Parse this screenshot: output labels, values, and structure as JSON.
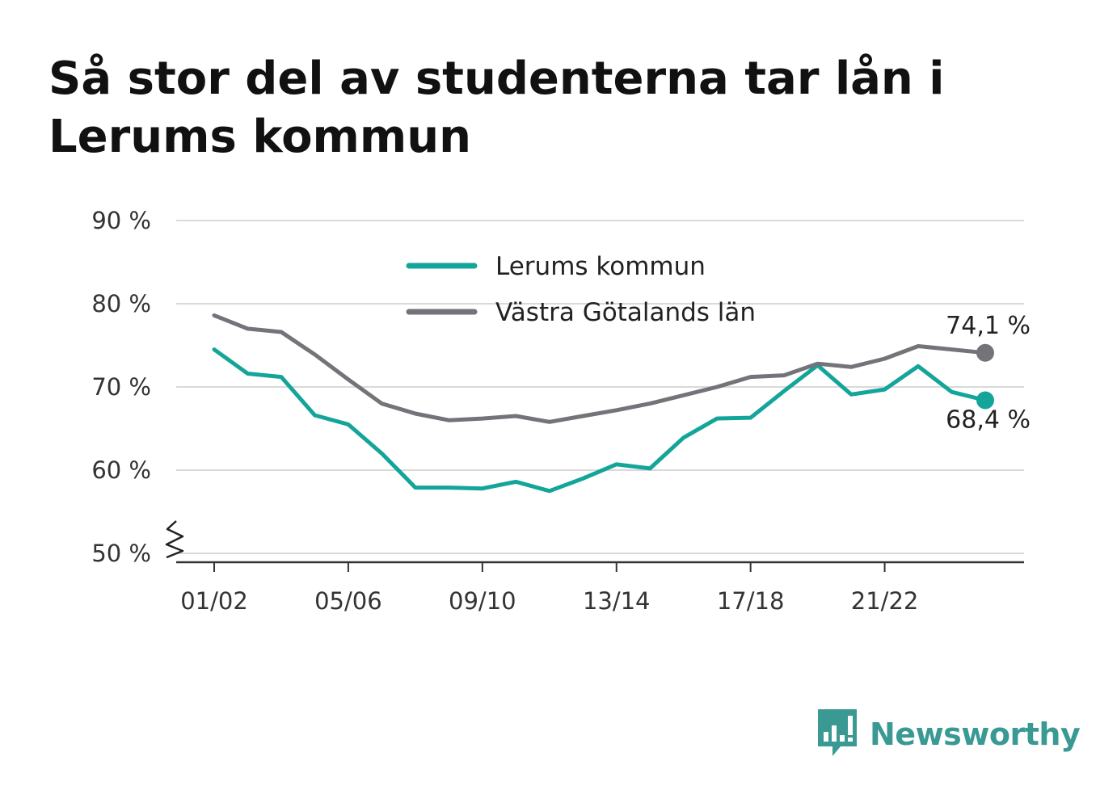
{
  "title": "Så stor del av studenterna tar lån i Lerums kommun",
  "brand": {
    "name": "Newsworthy",
    "icon": "newsworthy-logo-icon",
    "color": "#3a9a93"
  },
  "chart_data": {
    "type": "line",
    "title": "Så stor del av studenterna tar lån i Lerums kommun",
    "xlabel": "",
    "ylabel": "",
    "x": [
      "01/02",
      "02/03",
      "03/04",
      "04/05",
      "05/06",
      "06/07",
      "07/08",
      "08/09",
      "09/10",
      "10/11",
      "11/12",
      "12/13",
      "13/14",
      "14/15",
      "15/16",
      "16/17",
      "17/18",
      "18/19",
      "19/20",
      "20/21",
      "21/22",
      "22/23",
      "23/24",
      "24/25"
    ],
    "x_tick_labels": [
      "01/02",
      "05/06",
      "09/10",
      "13/14",
      "17/18",
      "21/22"
    ],
    "y_tick_labels": [
      "50 %",
      "60 %",
      "70 %",
      "80 %",
      "90 %"
    ],
    "y_ticks": [
      50,
      60,
      70,
      80,
      90
    ],
    "ylim": [
      50,
      90
    ],
    "y_axis_break": true,
    "grid": true,
    "legend_position": "top-center",
    "series": [
      {
        "name": "Lerums kommun",
        "color": "#14a59a",
        "values": [
          74.5,
          71.6,
          71.2,
          66.6,
          65.5,
          62.0,
          57.9,
          57.9,
          57.8,
          58.6,
          57.5,
          59.0,
          60.7,
          60.2,
          63.9,
          66.2,
          66.3,
          69.5,
          72.6,
          69.1,
          69.7,
          72.5,
          69.4,
          68.4
        ],
        "end_label": "68,4 %"
      },
      {
        "name": "Västra Götalands län",
        "color": "#747379",
        "values": [
          78.6,
          77.0,
          76.6,
          73.9,
          70.9,
          68.0,
          66.8,
          66.0,
          66.2,
          66.5,
          65.8,
          66.5,
          67.2,
          68.0,
          69.0,
          70.0,
          71.2,
          71.4,
          72.8,
          72.4,
          73.4,
          74.9,
          74.5,
          74.1
        ],
        "end_label": "74,1 %"
      }
    ]
  }
}
